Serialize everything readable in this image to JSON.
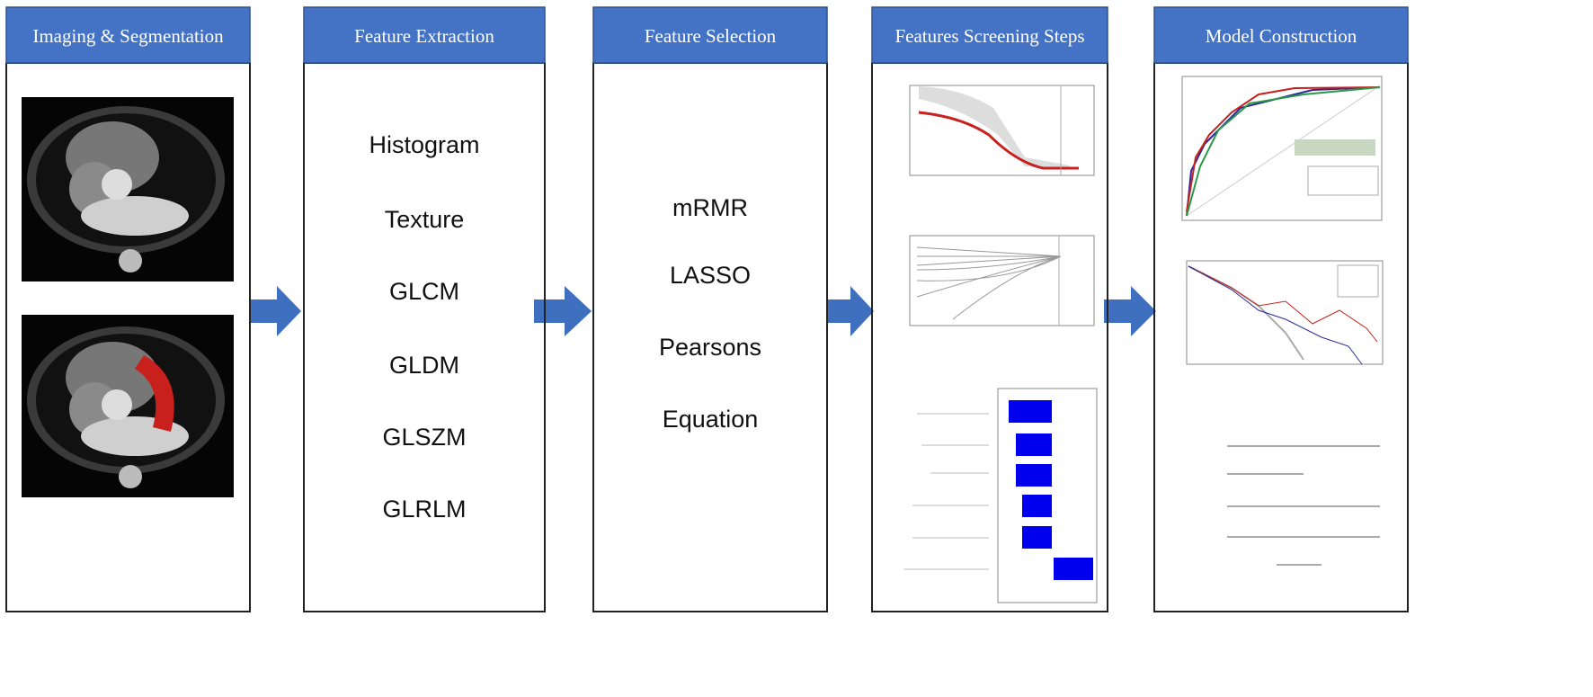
{
  "columns": [
    {
      "title": "Imaging & Segmentation"
    },
    {
      "title": "Feature Extraction",
      "items": [
        "Histogram",
        "Texture",
        "GLCM",
        "GLDM",
        "GLSZM",
        "GLRLM"
      ]
    },
    {
      "title": "Feature Selection",
      "items": [
        "mRMR",
        "LASSO",
        "Pearsons",
        "Equation"
      ]
    },
    {
      "title": "Features Screening Steps"
    },
    {
      "title": "Model Construction"
    }
  ]
}
